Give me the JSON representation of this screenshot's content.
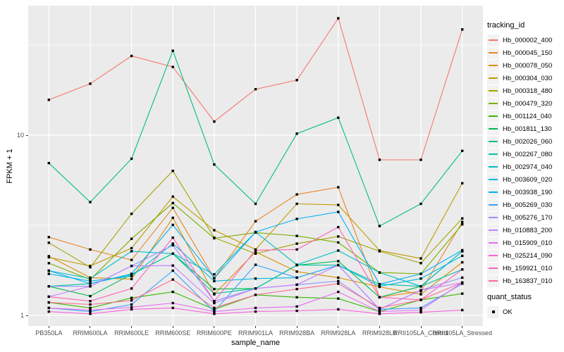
{
  "chart_data": {
    "type": "line",
    "title": "",
    "xlabel": "sample_name",
    "ylabel": "FPKM + 1",
    "y_scale": "log10",
    "ylim": [
      0.9,
      52
    ],
    "grid": "white on gray panel, major + minor log gridlines",
    "legend_position": "right",
    "legend_title": "tracking_id",
    "panel_background": "#EBEBEB",
    "point_marker": "small black square",
    "x_categories": [
      "PB350LA",
      "RRIM600LA",
      "RRIM600LE",
      "RRIM600SE",
      "RRIM600PE",
      "RRIM901LA",
      "RRIM928BA",
      "RRIM928LA",
      "RRIM928LB",
      "RRII105LA_Control",
      "RRII105LA_Stressed"
    ],
    "y_ticks": [
      {
        "label": "10",
        "value": 10
      },
      {
        "label": "1",
        "value": 1
      }
    ],
    "series": [
      {
        "name": "Hb_000002_400",
        "color": "#F8766D",
        "values": [
          15.7,
          19.3,
          27.5,
          23.9,
          11.9,
          18.0,
          20.2,
          44.5,
          7.3,
          7.3,
          38.6
        ]
      },
      {
        "name": "Hb_000045_150",
        "color": "#E88526",
        "values": [
          2.72,
          2.32,
          2.03,
          3.95,
          1.61,
          3.33,
          4.69,
          5.14,
          1.26,
          1.36,
          3.3
        ]
      },
      {
        "name": "Hb_000078_050",
        "color": "#D89000",
        "values": [
          2.13,
          1.62,
          1.59,
          3.48,
          1.31,
          2.25,
          1.75,
          1.62,
          1.44,
          1.31,
          1.97
        ]
      },
      {
        "name": "Hb_000304_030",
        "color": "#C09B00",
        "values": [
          2.1,
          1.88,
          2.36,
          4.56,
          2.97,
          2.32,
          4.16,
          4.1,
          2.29,
          2.07,
          5.41
        ]
      },
      {
        "name": "Hb_000318_480",
        "color": "#A3A500",
        "values": [
          2.53,
          1.85,
          3.66,
          6.34,
          2.7,
          2.2,
          2.5,
          2.74,
          2.27,
          1.95,
          3.45
        ]
      },
      {
        "name": "Hb_000479_320",
        "color": "#7CAE00",
        "values": [
          1.95,
          1.58,
          2.66,
          4.2,
          2.68,
          2.88,
          2.76,
          2.54,
          1.73,
          1.7,
          3.2
        ]
      },
      {
        "name": "Hb_001124_040",
        "color": "#39B600",
        "values": [
          1.18,
          1.1,
          1.25,
          1.35,
          1.08,
          1.3,
          1.26,
          1.24,
          1.05,
          1.22,
          1.32
        ]
      },
      {
        "name": "Hb_001811_130",
        "color": "#00BB4E",
        "values": [
          1.45,
          1.28,
          1.69,
          2.2,
          1.4,
          1.41,
          1.9,
          2.0,
          1.26,
          1.45,
          2.27
        ]
      },
      {
        "name": "Hb_002026_060",
        "color": "#00BF7D",
        "values": [
          7.0,
          4.25,
          7.4,
          29.4,
          6.87,
          4.16,
          10.2,
          12.5,
          3.13,
          4.16,
          8.18
        ]
      },
      {
        "name": "Hb_002267_080",
        "color": "#00C1A3",
        "values": [
          1.45,
          1.5,
          1.69,
          2.2,
          1.32,
          1.41,
          1.9,
          1.9,
          1.49,
          1.45,
          1.8
        ]
      },
      {
        "name": "Hb_002974_040",
        "color": "#00BFC4",
        "values": [
          1.77,
          1.6,
          2.27,
          2.2,
          1.69,
          2.9,
          1.91,
          2.29,
          1.73,
          1.45,
          2.27
        ]
      },
      {
        "name": "Hb_003609_020",
        "color": "#00BAE0",
        "values": [
          1.7,
          1.55,
          1.65,
          2.5,
          1.55,
          1.6,
          1.62,
          1.9,
          1.45,
          1.6,
          2.14
        ]
      },
      {
        "name": "Hb_003938_190",
        "color": "#00B0F6",
        "values": [
          1.77,
          1.5,
          1.7,
          3.18,
          1.61,
          2.9,
          3.43,
          3.75,
          1.49,
          1.7,
          2.3
        ]
      },
      {
        "name": "Hb_005269_030",
        "color": "#35A2FF",
        "values": [
          1.1,
          1.05,
          1.15,
          1.77,
          1.05,
          1.91,
          1.62,
          1.9,
          1.08,
          1.1,
          1.5
        ]
      },
      {
        "name": "Hb_005276_170",
        "color": "#9590FF",
        "values": [
          1.45,
          1.45,
          1.88,
          2.45,
          1.2,
          1.41,
          1.48,
          1.55,
          1.08,
          1.38,
          1.62
        ]
      },
      {
        "name": "Hb_010883_200",
        "color": "#C77CFF",
        "values": [
          1.27,
          1.45,
          1.88,
          1.89,
          1.17,
          1.41,
          1.48,
          1.9,
          1.08,
          1.38,
          1.52
        ]
      },
      {
        "name": "Hb_015909_010",
        "color": "#E76BF3",
        "values": [
          1.1,
          1.07,
          1.11,
          1.17,
          1.05,
          1.1,
          1.12,
          1.35,
          1.05,
          1.07,
          1.52
        ]
      },
      {
        "name": "Hb_025214_090",
        "color": "#FA62DB",
        "values": [
          1.05,
          1.02,
          1.08,
          1.1,
          1.02,
          1.05,
          1.06,
          1.08,
          1.02,
          1.04,
          1.07
        ]
      },
      {
        "name": "Hb_159921_010",
        "color": "#FF62BC",
        "values": [
          1.27,
          1.2,
          1.41,
          2.7,
          1.2,
          2.3,
          2.32,
          3.09,
          1.26,
          1.22,
          1.8
        ]
      },
      {
        "name": "Hb_163837_010",
        "color": "#FF6A98",
        "values": [
          1.18,
          1.15,
          1.21,
          1.58,
          1.1,
          1.3,
          1.4,
          1.5,
          1.1,
          1.22,
          1.52
        ]
      }
    ],
    "quant_status": {
      "title": "quant_status",
      "items": [
        "OK"
      ]
    }
  }
}
